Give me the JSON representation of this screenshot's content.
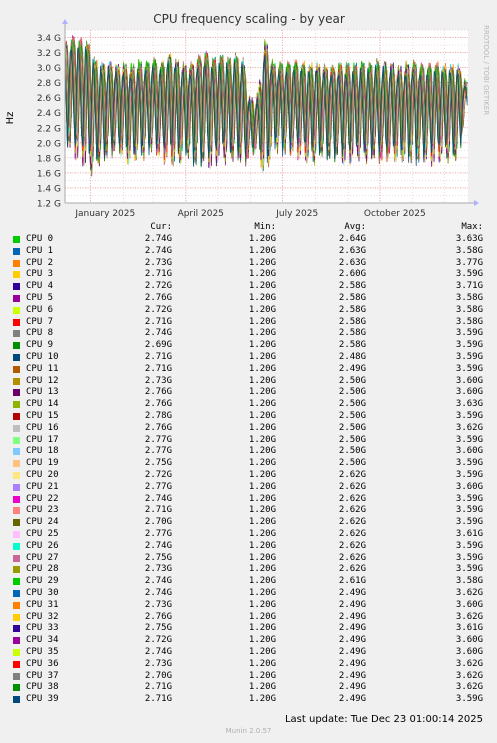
{
  "chart_data": {
    "type": "line",
    "title": "CPU frequency scaling - by year",
    "ylabel": "Hz",
    "xlabel": "",
    "side_label": "RRDTOOL / TOBI OETIKER",
    "ylim": [
      1.2,
      3.5
    ],
    "y_ticks": [
      {
        "value": 3.4,
        "label": "3.4 G"
      },
      {
        "value": 3.2,
        "label": "3.2 G"
      },
      {
        "value": 3.0,
        "label": "3.0 G"
      },
      {
        "value": 2.8,
        "label": "2.8 G"
      },
      {
        "value": 2.6,
        "label": "2.6 G"
      },
      {
        "value": 2.4,
        "label": "2.4 G"
      },
      {
        "value": 2.2,
        "label": "2.2 G"
      },
      {
        "value": 2.0,
        "label": "2.0 G"
      },
      {
        "value": 1.8,
        "label": "1.8 G"
      },
      {
        "value": 1.6,
        "label": "1.6 G"
      },
      {
        "value": 1.4,
        "label": "1.4 G"
      },
      {
        "value": 1.2,
        "label": "1.2 G"
      }
    ],
    "x_domain": [
      "2024-12-08",
      "2025-12-23"
    ],
    "x_ticks": [
      {
        "date": "2025-01-15",
        "label": "January 2025"
      },
      {
        "date": "2025-04-15",
        "label": "April 2025"
      },
      {
        "date": "2025-07-15",
        "label": "July 2025"
      },
      {
        "date": "2025-10-15",
        "label": "October 2025"
      }
    ],
    "grid": true,
    "series_envelope": {
      "x": [
        "2024-12-08",
        "2024-12-15",
        "2024-12-22",
        "2024-12-29",
        "2025-01-05",
        "2025-01-12",
        "2025-01-19",
        "2025-01-26",
        "2025-02-02",
        "2025-02-09",
        "2025-02-16",
        "2025-02-23",
        "2025-03-02",
        "2025-03-09",
        "2025-03-16",
        "2025-03-23",
        "2025-03-30",
        "2025-04-06",
        "2025-04-13",
        "2025-04-20",
        "2025-04-27",
        "2025-05-04",
        "2025-05-11",
        "2025-05-18",
        "2025-05-25",
        "2025-06-01",
        "2025-06-08",
        "2025-06-15",
        "2025-06-22",
        "2025-06-29",
        "2025-07-06",
        "2025-07-13",
        "2025-07-20",
        "2025-07-27",
        "2025-08-03",
        "2025-08-10",
        "2025-08-17",
        "2025-08-24",
        "2025-08-31",
        "2025-09-07",
        "2025-09-14",
        "2025-09-21",
        "2025-09-28",
        "2025-10-05",
        "2025-10-12",
        "2025-10-19",
        "2025-10-26",
        "2025-11-02",
        "2025-11-09",
        "2025-11-16",
        "2025-11-23",
        "2025-11-30",
        "2025-12-07",
        "2025-12-14",
        "2025-12-21"
      ],
      "high": [
        3.28,
        3.35,
        3.32,
        3.3,
        3.05,
        3.0,
        3.02,
        2.98,
        3.0,
        2.97,
        3.02,
        3.0,
        3.05,
        2.98,
        3.12,
        3.05,
        3.0,
        3.0,
        3.1,
        3.15,
        3.05,
        3.1,
        3.05,
        3.1,
        3.05,
        2.5,
        2.6,
        3.35,
        3.0,
        3.0,
        3.0,
        3.02,
        3.0,
        2.98,
        3.0,
        2.98,
        2.97,
        3.0,
        2.99,
        2.98,
        3.0,
        2.97,
        3.02,
        3.0,
        3.0,
        2.95,
        3.0,
        3.02,
        2.98,
        2.98,
        3.0,
        2.97,
        2.98,
        2.98,
        2.75
      ],
      "low": [
        2.0,
        1.9,
        1.8,
        1.6,
        1.65,
        1.75,
        1.85,
        1.9,
        1.8,
        1.75,
        1.8,
        1.85,
        1.9,
        1.8,
        1.75,
        1.7,
        1.85,
        1.8,
        1.7,
        1.75,
        1.7,
        1.8,
        1.75,
        1.8,
        1.7,
        1.85,
        1.9,
        1.5,
        1.95,
        1.9,
        1.85,
        1.9,
        1.8,
        1.75,
        1.8,
        1.85,
        1.8,
        1.8,
        1.75,
        1.8,
        1.8,
        1.75,
        1.8,
        1.75,
        1.8,
        1.8,
        1.75,
        1.8,
        1.75,
        1.8,
        1.75,
        1.8,
        1.8,
        1.75,
        2.5
      ]
    },
    "legend_header": {
      "cur": "Cur:",
      "min": "Min:",
      "avg": "Avg:",
      "max": "Max:"
    },
    "series": [
      {
        "name": "CPU 0",
        "color": "#00cc00",
        "cur": "2.74G",
        "min": "1.20G",
        "avg": "2.64G",
        "max": "3.63G"
      },
      {
        "name": "CPU 1",
        "color": "#0066b3",
        "cur": "2.74G",
        "min": "1.20G",
        "avg": "2.63G",
        "max": "3.58G"
      },
      {
        "name": "CPU 2",
        "color": "#ff8000",
        "cur": "2.73G",
        "min": "1.20G",
        "avg": "2.63G",
        "max": "3.77G"
      },
      {
        "name": "CPU 3",
        "color": "#ffcc00",
        "cur": "2.71G",
        "min": "1.20G",
        "avg": "2.60G",
        "max": "3.59G"
      },
      {
        "name": "CPU 4",
        "color": "#330099",
        "cur": "2.72G",
        "min": "1.20G",
        "avg": "2.58G",
        "max": "3.71G"
      },
      {
        "name": "CPU 5",
        "color": "#990099",
        "cur": "2.76G",
        "min": "1.20G",
        "avg": "2.58G",
        "max": "3.58G"
      },
      {
        "name": "CPU 6",
        "color": "#ccff00",
        "cur": "2.72G",
        "min": "1.20G",
        "avg": "2.58G",
        "max": "3.58G"
      },
      {
        "name": "CPU 7",
        "color": "#ff0000",
        "cur": "2.71G",
        "min": "1.20G",
        "avg": "2.58G",
        "max": "3.58G"
      },
      {
        "name": "CPU 8",
        "color": "#808080",
        "cur": "2.74G",
        "min": "1.20G",
        "avg": "2.58G",
        "max": "3.59G"
      },
      {
        "name": "CPU 9",
        "color": "#008f00",
        "cur": "2.69G",
        "min": "1.20G",
        "avg": "2.58G",
        "max": "3.59G"
      },
      {
        "name": "CPU 10",
        "color": "#00487d",
        "cur": "2.71G",
        "min": "1.20G",
        "avg": "2.48G",
        "max": "3.59G"
      },
      {
        "name": "CPU 11",
        "color": "#b35a00",
        "cur": "2.71G",
        "min": "1.20G",
        "avg": "2.49G",
        "max": "3.59G"
      },
      {
        "name": "CPU 12",
        "color": "#b38f00",
        "cur": "2.73G",
        "min": "1.20G",
        "avg": "2.50G",
        "max": "3.60G"
      },
      {
        "name": "CPU 13",
        "color": "#6b006b",
        "cur": "2.76G",
        "min": "1.20G",
        "avg": "2.50G",
        "max": "3.60G"
      },
      {
        "name": "CPU 14",
        "color": "#8fb300",
        "cur": "2.76G",
        "min": "1.20G",
        "avg": "2.50G",
        "max": "3.63G"
      },
      {
        "name": "CPU 15",
        "color": "#b30000",
        "cur": "2.78G",
        "min": "1.20G",
        "avg": "2.50G",
        "max": "3.59G"
      },
      {
        "name": "CPU 16",
        "color": "#bebebe",
        "cur": "2.76G",
        "min": "1.20G",
        "avg": "2.50G",
        "max": "3.62G"
      },
      {
        "name": "CPU 17",
        "color": "#80ff80",
        "cur": "2.77G",
        "min": "1.20G",
        "avg": "2.50G",
        "max": "3.59G"
      },
      {
        "name": "CPU 18",
        "color": "#80c9ff",
        "cur": "2.77G",
        "min": "1.20G",
        "avg": "2.50G",
        "max": "3.60G"
      },
      {
        "name": "CPU 19",
        "color": "#ffc080",
        "cur": "2.75G",
        "min": "1.20G",
        "avg": "2.50G",
        "max": "3.59G"
      },
      {
        "name": "CPU 20",
        "color": "#ffe680",
        "cur": "2.72G",
        "min": "1.20G",
        "avg": "2.62G",
        "max": "3.59G"
      },
      {
        "name": "CPU 21",
        "color": "#aa80ff",
        "cur": "2.77G",
        "min": "1.20G",
        "avg": "2.62G",
        "max": "3.60G"
      },
      {
        "name": "CPU 22",
        "color": "#ee00cc",
        "cur": "2.74G",
        "min": "1.20G",
        "avg": "2.62G",
        "max": "3.59G"
      },
      {
        "name": "CPU 23",
        "color": "#ff8080",
        "cur": "2.71G",
        "min": "1.20G",
        "avg": "2.62G",
        "max": "3.59G"
      },
      {
        "name": "CPU 24",
        "color": "#666600",
        "cur": "2.70G",
        "min": "1.20G",
        "avg": "2.62G",
        "max": "3.59G"
      },
      {
        "name": "CPU 25",
        "color": "#ffbfff",
        "cur": "2.77G",
        "min": "1.20G",
        "avg": "2.62G",
        "max": "3.61G"
      },
      {
        "name": "CPU 26",
        "color": "#00ffcc",
        "cur": "2.74G",
        "min": "1.20G",
        "avg": "2.62G",
        "max": "3.59G"
      },
      {
        "name": "CPU 27",
        "color": "#cc6699",
        "cur": "2.75G",
        "min": "1.20G",
        "avg": "2.62G",
        "max": "3.59G"
      },
      {
        "name": "CPU 28",
        "color": "#999900",
        "cur": "2.73G",
        "min": "1.20G",
        "avg": "2.62G",
        "max": "3.59G"
      },
      {
        "name": "CPU 29",
        "color": "#00cc00",
        "cur": "2.74G",
        "min": "1.20G",
        "avg": "2.61G",
        "max": "3.58G"
      },
      {
        "name": "CPU 30",
        "color": "#0066b3",
        "cur": "2.74G",
        "min": "1.20G",
        "avg": "2.49G",
        "max": "3.62G"
      },
      {
        "name": "CPU 31",
        "color": "#ff8000",
        "cur": "2.73G",
        "min": "1.20G",
        "avg": "2.49G",
        "max": "3.60G"
      },
      {
        "name": "CPU 32",
        "color": "#ffcc00",
        "cur": "2.76G",
        "min": "1.20G",
        "avg": "2.49G",
        "max": "3.62G"
      },
      {
        "name": "CPU 33",
        "color": "#330099",
        "cur": "2.75G",
        "min": "1.20G",
        "avg": "2.49G",
        "max": "3.61G"
      },
      {
        "name": "CPU 34",
        "color": "#990099",
        "cur": "2.72G",
        "min": "1.20G",
        "avg": "2.49G",
        "max": "3.60G"
      },
      {
        "name": "CPU 35",
        "color": "#ccff00",
        "cur": "2.74G",
        "min": "1.20G",
        "avg": "2.49G",
        "max": "3.60G"
      },
      {
        "name": "CPU 36",
        "color": "#ff0000",
        "cur": "2.73G",
        "min": "1.20G",
        "avg": "2.49G",
        "max": "3.62G"
      },
      {
        "name": "CPU 37",
        "color": "#808080",
        "cur": "2.70G",
        "min": "1.20G",
        "avg": "2.49G",
        "max": "3.62G"
      },
      {
        "name": "CPU 38",
        "color": "#008f00",
        "cur": "2.71G",
        "min": "1.20G",
        "avg": "2.49G",
        "max": "3.62G"
      },
      {
        "name": "CPU 39",
        "color": "#00487d",
        "cur": "2.71G",
        "min": "1.20G",
        "avg": "2.49G",
        "max": "3.59G"
      }
    ]
  },
  "footer": {
    "last_update": "Last update: Tue Dec 23 01:00:14 2025",
    "generator": "Munin 2.0.57"
  }
}
